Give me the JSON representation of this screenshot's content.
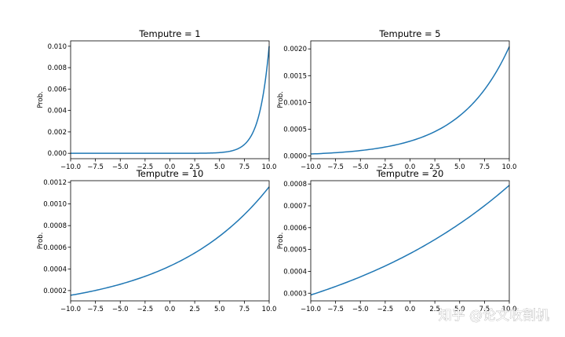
{
  "watermark": "知乎 @论文收割机",
  "colors": {
    "line": "#1f77b4"
  },
  "chart_data": [
    {
      "type": "line",
      "title": "Temputre = 1",
      "xlabel": "",
      "ylabel": "Prob.",
      "temperature": 1,
      "xlim": [
        -10.0,
        10.0
      ],
      "ylim": [
        -0.0005,
        0.0105
      ],
      "xticks": [
        -10.0,
        -7.5,
        -5.0,
        -2.5,
        0.0,
        2.5,
        5.0,
        7.5,
        10.0
      ],
      "xtick_labels": [
        "−10.0",
        "−7.5",
        "−5.0",
        "−2.5",
        "0.0",
        "2.5",
        "5.0",
        "7.5",
        "10.0"
      ],
      "yticks": [
        0.0,
        0.002,
        0.004,
        0.006,
        0.008,
        0.01
      ],
      "ytick_labels": [
        "0.000",
        "0.002",
        "0.004",
        "0.006",
        "0.008",
        "0.010"
      ],
      "series": [
        {
          "x": [
            -10,
            -8,
            -6,
            -4,
            -2,
            0,
            2,
            4,
            5,
            6,
            7,
            7.5,
            8,
            8.5,
            9,
            9.5,
            10
          ],
          "y": [
            0.0,
            0.0,
            0.0,
            0.0,
            0.0,
            0.0,
            3e-06,
            2.5e-05,
            6.8e-05,
            0.000183,
            0.000498,
            0.000821,
            0.001353,
            0.002231,
            0.003679,
            0.006065,
            0.01
          ]
        }
      ]
    },
    {
      "type": "line",
      "title": "Temputre = 5",
      "xlabel": "",
      "ylabel": "Prob.",
      "temperature": 5,
      "xlim": [
        -10.0,
        10.0
      ],
      "ylim": [
        -5e-05,
        0.00215
      ],
      "xticks": [
        -10.0,
        -7.5,
        -5.0,
        -2.5,
        0.0,
        2.5,
        5.0,
        7.5,
        10.0
      ],
      "xtick_labels": [
        "−10.0",
        "−7.5",
        "−5.0",
        "−2.5",
        "0.0",
        "2.5",
        "5.0",
        "7.5",
        "10.0"
      ],
      "yticks": [
        0.0,
        0.0005,
        0.001,
        0.0015,
        0.002
      ],
      "ytick_labels": [
        "0.0000",
        "0.0005",
        "0.0010",
        "0.0015",
        "0.0020"
      ],
      "series": [
        {
          "x": [
            -10,
            -7.5,
            -5,
            -2.5,
            0,
            2.5,
            5,
            7.5,
            10
          ],
          "y": [
            3.75e-05,
            6.16e-05,
            0.0001016,
            0.0001675,
            0.0002762,
            0.0004553,
            0.0007508,
            0.0012378,
            0.0020408
          ]
        }
      ]
    },
    {
      "type": "line",
      "title": "Temputre = 10",
      "xlabel": "",
      "ylabel": "Prob.",
      "temperature": 10,
      "xlim": [
        -10.0,
        10.0
      ],
      "ylim": [
        0.000105,
        0.001215
      ],
      "xticks": [
        -10.0,
        -7.5,
        -5.0,
        -2.5,
        0.0,
        2.5,
        5.0,
        7.5,
        10.0
      ],
      "xtick_labels": [
        "−10.0",
        "−7.5",
        "−5.0",
        "−2.5",
        "0.0",
        "2.5",
        "5.0",
        "7.5",
        "10.0"
      ],
      "yticks": [
        0.0002,
        0.0004,
        0.0006,
        0.0008,
        0.001,
        0.0012
      ],
      "ytick_labels": [
        "0.0002",
        "0.0004",
        "0.0006",
        "0.0008",
        "0.0010",
        "0.0012"
      ],
      "series": [
        {
          "x": [
            -10,
            -7.5,
            -5,
            -2.5,
            0,
            2.5,
            5,
            7.5,
            10
          ],
          "y": [
            0.0001567,
            0.0002012,
            0.0002584,
            0.0003318,
            0.0004261,
            0.0005471,
            0.0007025,
            0.0009021,
            0.0011583
          ]
        }
      ]
    },
    {
      "type": "line",
      "title": "Temputre = 20",
      "xlabel": "",
      "ylabel": "Prob.",
      "temperature": 20,
      "xlim": [
        -10.0,
        10.0
      ],
      "ylim": [
        0.000265,
        0.000815
      ],
      "xticks": [
        -10.0,
        -7.5,
        -5.0,
        -2.5,
        0.0,
        2.5,
        5.0,
        7.5,
        10.0
      ],
      "xtick_labels": [
        "−10.0",
        "−7.5",
        "−5.0",
        "−2.5",
        "0.0",
        "2.5",
        "5.0",
        "7.5",
        "10.0"
      ],
      "yticks": [
        0.0003,
        0.0004,
        0.0005,
        0.0006,
        0.0007,
        0.0008
      ],
      "ytick_labels": [
        "0.0003",
        "0.0004",
        "0.0005",
        "0.0006",
        "0.0007",
        "0.0008"
      ],
      "series": [
        {
          "x": [
            -10,
            -7.5,
            -5,
            -2.5,
            0,
            2.5,
            5,
            7.5,
            10
          ],
          "y": [
            0.000292,
            0.0003309,
            0.0003749,
            0.0004248,
            0.0004814,
            0.0005455,
            0.0006181,
            0.0007004,
            0.0007937
          ]
        }
      ]
    }
  ]
}
